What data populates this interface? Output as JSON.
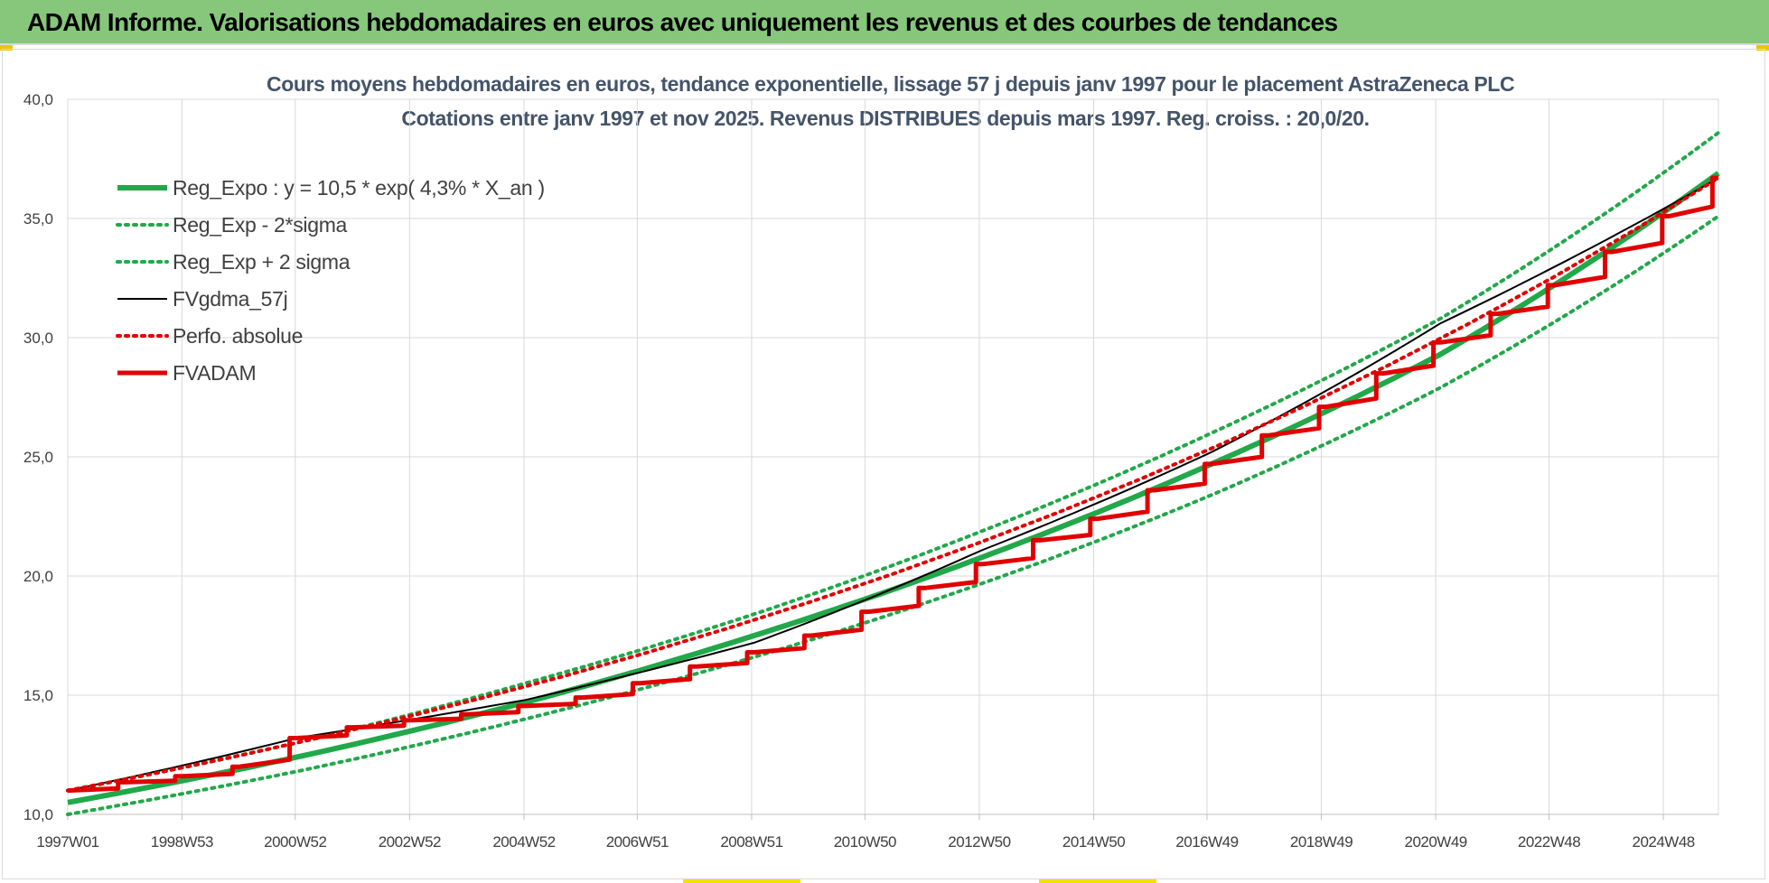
{
  "banner": {
    "title": "ADAM Informe. Valorisations hebdomadaires en euros avec uniquement les revenus et des courbes de tendances"
  },
  "colors": {
    "banner_bg": "#86c77c",
    "title_text": "#44546a",
    "green": "#21a84a",
    "green_dotted": "#21a84a",
    "black": "#000000",
    "red": "#e00000"
  },
  "chart_data": {
    "type": "line",
    "title": "Cours moyens  hebdomadaires en euros, tendance exponentielle, lissage 57 j depuis janv 1997 pour le placement AstraZeneca PLC",
    "subtitle": "Cotations entre janv 1997 et nov 2025. Revenus DISTRIBUES depuis mars 1997.  Reg. croiss. : 20,0/20.",
    "xlabel": "",
    "ylabel": "",
    "ylim": [
      10,
      40
    ],
    "y_ticks": [
      "10,0",
      "15,0",
      "20,0",
      "25,0",
      "30,0",
      "35,0",
      "40,0"
    ],
    "x_range": [
      "1997W01",
      "2025W46"
    ],
    "x_tick_labels": [
      "1997W01",
      "1998W53",
      "2000W52",
      "2002W52",
      "2004W52",
      "2006W51",
      "2008W51",
      "2010W50",
      "2012W50",
      "2014W50",
      "2016W49",
      "2018W49",
      "2020W49",
      "2022W48",
      "2024W48"
    ],
    "grid": true,
    "legend_position": "top-left",
    "series": [
      {
        "name": "Reg_Expo : y = 10,5 * exp( 4,3% *  X_an )",
        "style": "solid-thick",
        "color": "#21a84a",
        "x": [
          "1997W01",
          "2001W01",
          "2005W01",
          "2009W01",
          "2013W01",
          "2017W01",
          "2021W01",
          "2025W46"
        ],
        "values": [
          10.5,
          12.4,
          14.7,
          17.5,
          20.8,
          24.7,
          29.3,
          36.9
        ]
      },
      {
        "name": "Reg_Exp - 2*sigma",
        "style": "dotted",
        "color": "#21a84a",
        "x": [
          "1997W01",
          "2001W01",
          "2005W01",
          "2009W01",
          "2013W01",
          "2017W01",
          "2021W01",
          "2025W46"
        ],
        "values": [
          10.0,
          11.8,
          14.0,
          16.6,
          19.7,
          23.4,
          27.9,
          35.1
        ]
      },
      {
        "name": "Reg_Exp + 2 sigma",
        "style": "dotted",
        "color": "#21a84a",
        "x": [
          "1997W01",
          "2001W01",
          "2005W01",
          "2009W01",
          "2013W01",
          "2017W01",
          "2021W01",
          "2025W46"
        ],
        "values": [
          11.0,
          13.0,
          15.5,
          18.4,
          21.9,
          26.0,
          30.8,
          38.6
        ]
      },
      {
        "name": "FVgdma_57j",
        "style": "solid-thin",
        "color": "#000000",
        "x": [
          "1997W01",
          "2001W01",
          "2005W01",
          "2009W01",
          "2013W01",
          "2017W01",
          "2021W01",
          "2025W46"
        ],
        "values": [
          11.0,
          13.2,
          14.8,
          17.2,
          21.1,
          25.2,
          30.6,
          36.7
        ]
      },
      {
        "name": "Perfo. absolue",
        "style": "dotted",
        "color": "#e00000",
        "x": [
          "1997W01",
          "2025W46"
        ],
        "values": [
          11.0,
          36.7
        ]
      },
      {
        "name": "FVADAM",
        "style": "staircase-thick",
        "color": "#e00000",
        "x": [
          "1997W01",
          "1998W01",
          "1999W01",
          "2000W01",
          "2001W01",
          "2002W01",
          "2003W01",
          "2004W01",
          "2005W01",
          "2006W01",
          "2007W01",
          "2008W01",
          "2009W01",
          "2010W01",
          "2011W01",
          "2012W01",
          "2013W01",
          "2014W01",
          "2015W01",
          "2016W01",
          "2017W01",
          "2018W01",
          "2019W01",
          "2020W01",
          "2021W01",
          "2022W01",
          "2023W01",
          "2024W01",
          "2025W01",
          "2025W46"
        ],
        "values": [
          11.0,
          11.35,
          11.6,
          12.0,
          13.2,
          13.65,
          13.95,
          14.2,
          14.55,
          14.9,
          15.5,
          16.2,
          16.8,
          17.5,
          18.5,
          19.5,
          20.5,
          21.5,
          22.4,
          23.6,
          24.7,
          25.9,
          27.1,
          28.5,
          29.8,
          31.0,
          32.2,
          33.6,
          35.1,
          36.7
        ]
      }
    ]
  }
}
